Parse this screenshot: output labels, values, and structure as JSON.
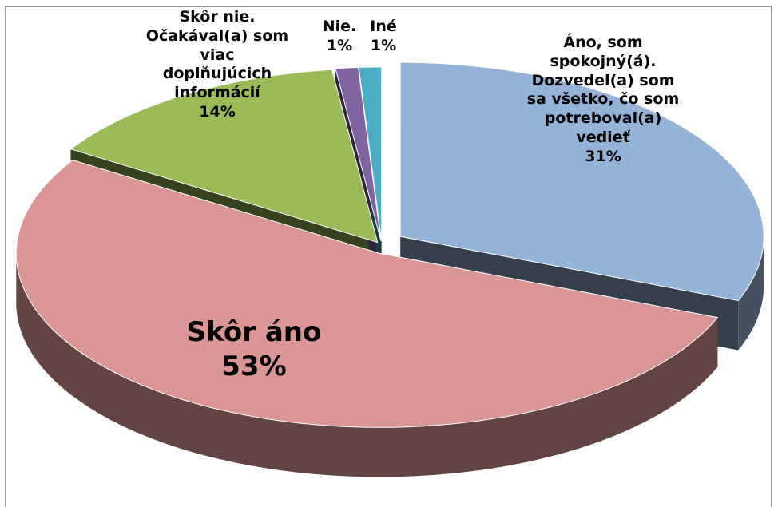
{
  "chart_data": {
    "type": "pie",
    "categories": [
      "Áno, som spokojný(á). Dozvedel(a) som sa všetko, čo som potreboval(a) vedieť",
      "Skôr áno",
      "Skôr nie. Očakával(a) som viac doplňujúcich informácií",
      "Nie.",
      "Iné"
    ],
    "values": [
      31,
      53,
      14,
      1,
      1
    ],
    "value_labels": [
      "31%",
      "53%",
      "14%",
      "1%",
      "1%"
    ],
    "colors": [
      "#95b3d7",
      "#d99694",
      "#9bbb59",
      "#8064a2",
      "#4bacc6"
    ]
  }
}
